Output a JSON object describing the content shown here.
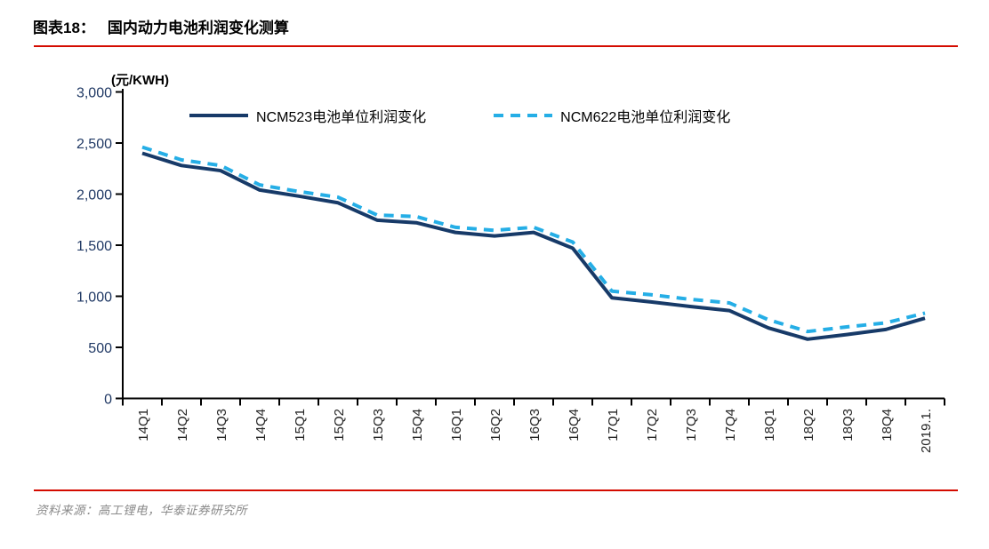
{
  "title": {
    "label": "图表18：",
    "text": "国内动力电池利润变化测算"
  },
  "source": {
    "text": "资料来源：高工锂电，华泰证券研究所"
  },
  "colors": {
    "rule_red": "#d40b00",
    "axis": "#000000",
    "y_tick_text": "#1f3864",
    "x_tick_text": "#262626",
    "ncm523_navy": "#173a68",
    "ncm622_skyblue": "#25aee6",
    "source_gray": "#8a8a8a"
  },
  "chart_data": {
    "type": "line",
    "title": "国内动力电池利润变化测算",
    "ylabel": "(元/KWH)",
    "xlabel": "",
    "ylim": [
      0,
      3000
    ],
    "y_ticks": [
      0,
      500,
      1000,
      1500,
      2000,
      2500,
      3000
    ],
    "y_tick_labels": [
      "0",
      "500",
      "1,000",
      "1,500",
      "2,000",
      "2,500",
      "3,000"
    ],
    "grid": false,
    "legend_position": "top",
    "categories": [
      "14Q1",
      "14Q2",
      "14Q3",
      "14Q4",
      "15Q1",
      "15Q2",
      "15Q3",
      "15Q4",
      "16Q1",
      "16Q2",
      "16Q3",
      "16Q4",
      "17Q1",
      "17Q2",
      "17Q3",
      "17Q4",
      "18Q1",
      "18Q2",
      "18Q3",
      "18Q4",
      "2019.1."
    ],
    "series": [
      {
        "name": "NCM523电池单位利润变化",
        "style": "solid",
        "color": "#173a68",
        "values": [
          2400,
          2280,
          2230,
          2040,
          1980,
          1915,
          1745,
          1720,
          1625,
          1590,
          1625,
          1470,
          985,
          945,
          900,
          860,
          690,
          580,
          625,
          675,
          785
        ]
      },
      {
        "name": "NCM622电池单位利润变化",
        "style": "dashed",
        "color": "#25aee6",
        "values": [
          2460,
          2335,
          2280,
          2090,
          2025,
          1970,
          1795,
          1780,
          1675,
          1645,
          1675,
          1530,
          1050,
          1015,
          970,
          935,
          770,
          655,
          700,
          740,
          835
        ]
      }
    ]
  }
}
